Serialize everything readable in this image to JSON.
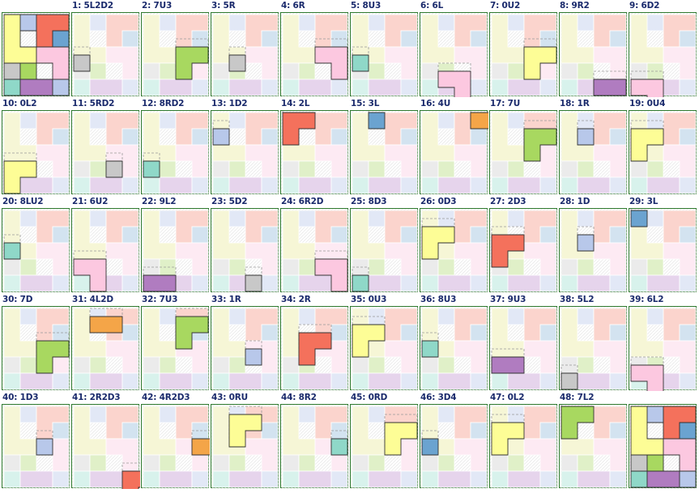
{
  "pieces": {
    "0": {
      "name": "yellow",
      "color": "#fdfd96",
      "dim": "#f6f6d6"
    },
    "1": {
      "name": "lavender",
      "color": "#b8c8ea",
      "dim": "#e2e8f6"
    },
    "2": {
      "name": "red",
      "color": "#f4715c",
      "dim": "#fbd4cd"
    },
    "3": {
      "name": "steel-blue",
      "color": "#6ba3d0",
      "dim": "#d3e3f0"
    },
    "4": {
      "name": "orange",
      "color": "#f4a548",
      "dim": "#fbdfbe"
    },
    "5": {
      "name": "gray",
      "color": "#c8c8c8",
      "dim": "#ebebeb"
    },
    "6": {
      "name": "pink",
      "color": "#fcc8e0",
      "dim": "#fdeaf3"
    },
    "7": {
      "name": "green",
      "color": "#a8d860",
      "dim": "#e0f0c8"
    },
    "8": {
      "name": "mint",
      "color": "#8fd8c8",
      "dim": "#d8f2ec"
    },
    "9": {
      "name": "purple",
      "color": "#b07cc0",
      "dim": "#e6d4ec"
    }
  },
  "moves": [
    {
      "label": "",
      "variant": "start"
    },
    {
      "label": "1: 5L2D2",
      "piece": 5
    },
    {
      "label": "2: 7U3",
      "piece": 7
    },
    {
      "label": "3: 5R",
      "piece": 5
    },
    {
      "label": "4: 6R",
      "piece": 6
    },
    {
      "label": "5: 8U3",
      "piece": 8
    },
    {
      "label": "6: 6L",
      "piece": 6
    },
    {
      "label": "7: 0U2",
      "piece": 0
    },
    {
      "label": "8: 9R2",
      "piece": 9
    },
    {
      "label": "9: 6D2",
      "piece": 6
    },
    {
      "label": "10: 0L2",
      "piece": 0
    },
    {
      "label": "11: 5RD2",
      "piece": 5
    },
    {
      "label": "12: 8RD2",
      "piece": 8
    },
    {
      "label": "13: 1D2",
      "piece": 1
    },
    {
      "label": "14: 2L",
      "piece": 2
    },
    {
      "label": "15: 3L",
      "piece": 3
    },
    {
      "label": "16: 4U",
      "piece": 4
    },
    {
      "label": "17: 7U",
      "piece": 7
    },
    {
      "label": "18: 1R",
      "piece": 1
    },
    {
      "label": "19: 0U4",
      "piece": 0
    },
    {
      "label": "20: 8LU2",
      "piece": 8
    },
    {
      "label": "21: 6U2",
      "piece": 6
    },
    {
      "label": "22: 9L2",
      "piece": 9
    },
    {
      "label": "23: 5D2",
      "piece": 5
    },
    {
      "label": "24: 6R2D",
      "piece": 6
    },
    {
      "label": "25: 8D3",
      "piece": 8
    },
    {
      "label": "26: 0D3",
      "piece": 0
    },
    {
      "label": "27: 2D3",
      "piece": 2
    },
    {
      "label": "28: 1D",
      "piece": 1
    },
    {
      "label": "29: 3L",
      "piece": 3
    },
    {
      "label": "30: 7D",
      "piece": 7
    },
    {
      "label": "31: 4L2D",
      "piece": 4
    },
    {
      "label": "32: 7U3",
      "piece": 7
    },
    {
      "label": "33: 1R",
      "piece": 1
    },
    {
      "label": "34: 2R",
      "piece": 2
    },
    {
      "label": "35: 0U3",
      "piece": 0
    },
    {
      "label": "36: 8U3",
      "piece": 8
    },
    {
      "label": "37: 9U3",
      "piece": 9
    },
    {
      "label": "38: 5L2",
      "piece": 5
    },
    {
      "label": "39: 6L2",
      "piece": 6
    },
    {
      "label": "40: 1D3",
      "piece": 1
    },
    {
      "label": "41: 2R2D3",
      "piece": 2
    },
    {
      "label": "42: 4R2D3",
      "piece": 4
    },
    {
      "label": "43: 0RU",
      "piece": 0
    },
    {
      "label": "44: 8R2",
      "piece": 8
    },
    {
      "label": "45: 0RD",
      "piece": 0
    },
    {
      "label": "46: 3D4",
      "piece": 3
    },
    {
      "label": "47: 0L2",
      "piece": 0
    },
    {
      "label": "48: 7L2",
      "piece": 7
    },
    {
      "label": "",
      "variant": "final"
    }
  ]
}
